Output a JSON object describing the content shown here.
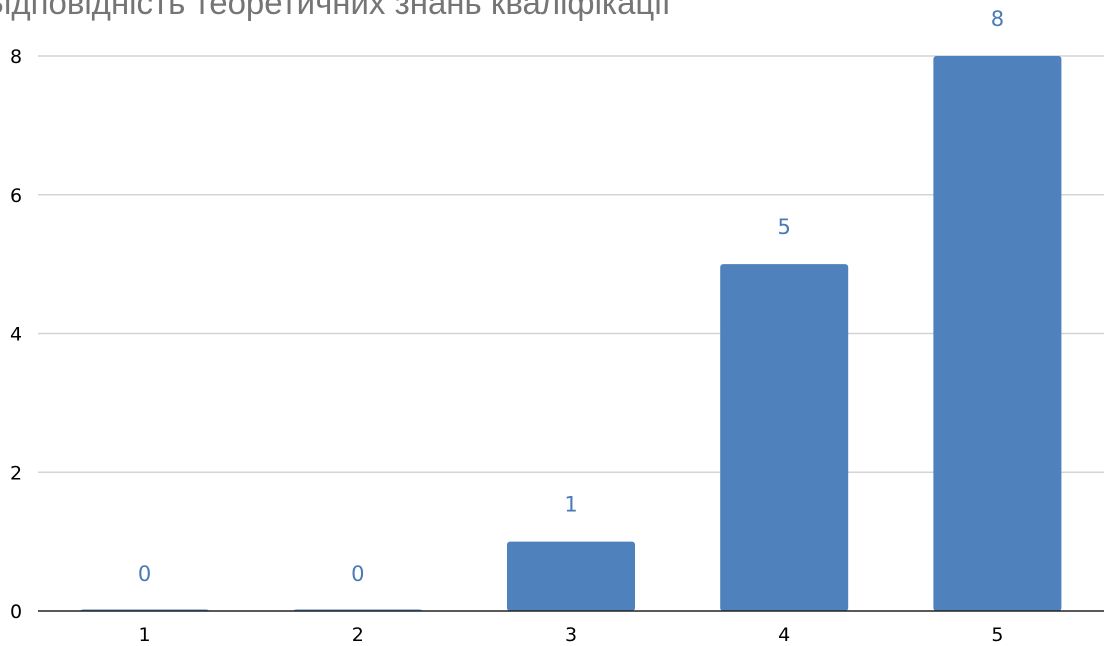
{
  "title": "Відповідність теоретичних знань кваліфікації",
  "colors": {
    "bar": "#4f81bd",
    "data_label": "#4a7ab8",
    "grid": "#d4d4d4",
    "axis": "#222222"
  },
  "chart_data": {
    "type": "bar",
    "title": "Відповідність теоретичних знань кваліфікації",
    "categories": [
      "1",
      "2",
      "3",
      "4",
      "5"
    ],
    "values": [
      0,
      0,
      1,
      5,
      8
    ],
    "data_labels": [
      "0",
      "0",
      "1",
      "5",
      "8"
    ],
    "xlabel": "",
    "ylabel": "",
    "ylim": [
      0,
      8
    ],
    "yticks": [
      0,
      2,
      4,
      6,
      8
    ],
    "grid": true,
    "legend": "none"
  }
}
